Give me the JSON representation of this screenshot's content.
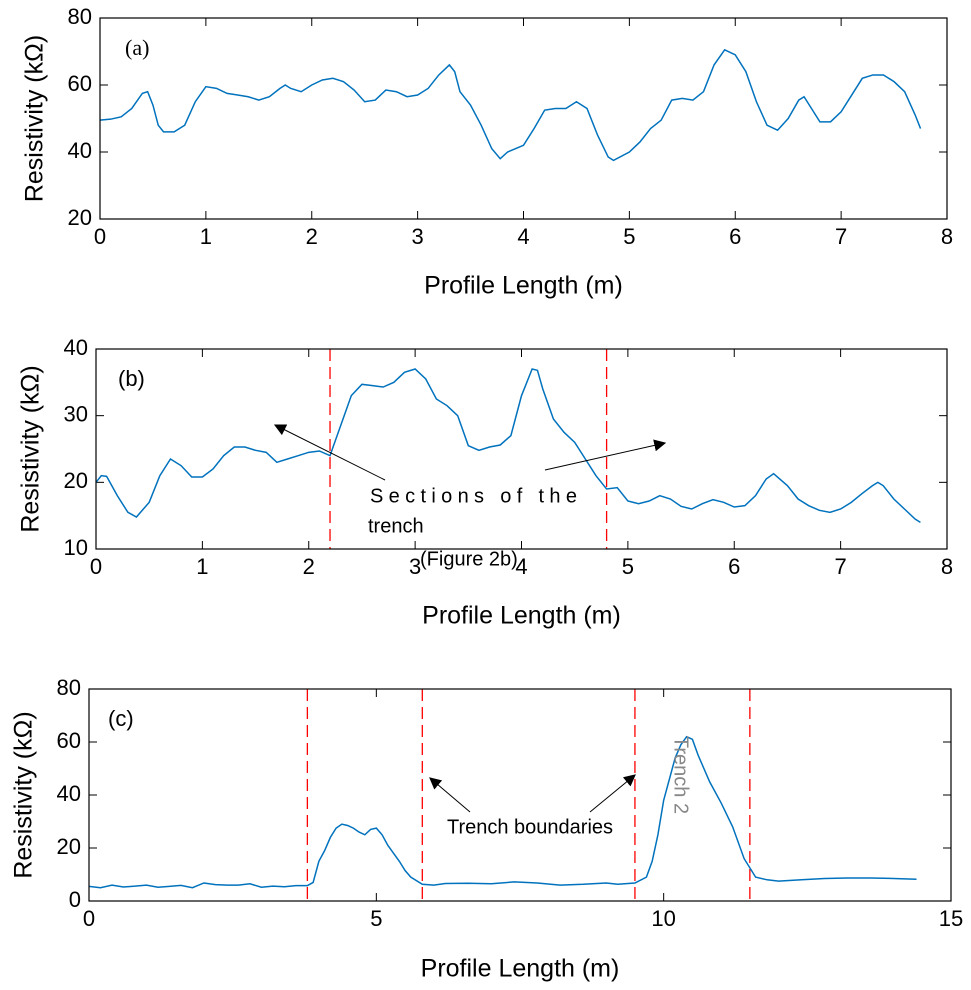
{
  "chart_data": [
    {
      "type": "line",
      "panel_label": "(a)",
      "xlabel": "Profile Length (m)",
      "ylabel": "Resistivity (kΩ)",
      "xlim": [
        0,
        8
      ],
      "ylim": [
        20,
        80
      ],
      "xticks": [
        0,
        1,
        2,
        3,
        4,
        5,
        6,
        7,
        8
      ],
      "yticks": [
        20,
        40,
        60,
        80
      ],
      "x": [
        0,
        0.1,
        0.2,
        0.3,
        0.4,
        0.45,
        0.5,
        0.55,
        0.6,
        0.7,
        0.8,
        0.9,
        1.0,
        1.1,
        1.2,
        1.3,
        1.4,
        1.5,
        1.6,
        1.7,
        1.75,
        1.8,
        1.9,
        2.0,
        2.1,
        2.2,
        2.3,
        2.4,
        2.5,
        2.6,
        2.7,
        2.8,
        2.9,
        3.0,
        3.1,
        3.2,
        3.3,
        3.35,
        3.4,
        3.5,
        3.6,
        3.7,
        3.78,
        3.85,
        4.0,
        4.1,
        4.2,
        4.3,
        4.4,
        4.5,
        4.6,
        4.7,
        4.8,
        4.85,
        5.0,
        5.1,
        5.2,
        5.3,
        5.4,
        5.5,
        5.6,
        5.7,
        5.8,
        5.9,
        6.0,
        6.1,
        6.2,
        6.3,
        6.4,
        6.5,
        6.6,
        6.65,
        6.7,
        6.8,
        6.9,
        7.0,
        7.1,
        7.2,
        7.3,
        7.4,
        7.5,
        7.6,
        7.7,
        7.75
      ],
      "series": [
        {
          "color": "#0072bd",
          "values": [
            49.5,
            49.8,
            50.5,
            53,
            57.5,
            58,
            54,
            48,
            46,
            46,
            48,
            55,
            59.5,
            59,
            57.5,
            57,
            56.5,
            55.5,
            56.5,
            59,
            60,
            59,
            58,
            60,
            61.5,
            62,
            61,
            58.5,
            55,
            55.5,
            58.5,
            58,
            56.5,
            57,
            59,
            63,
            66,
            64,
            58,
            54,
            48,
            41,
            38,
            40,
            42,
            47,
            52.5,
            53,
            53,
            55,
            53,
            45,
            38.5,
            37.5,
            40,
            43,
            47,
            49.5,
            55.5,
            56,
            55.5,
            58,
            66,
            70.5,
            69,
            64,
            55,
            48,
            46.5,
            50,
            55.5,
            56.5,
            54,
            49,
            49,
            52,
            57,
            62,
            63,
            63,
            61,
            58,
            51,
            47
          ]
        }
      ]
    },
    {
      "type": "line",
      "panel_label": "(b)",
      "xlabel": "Profile Length (m)",
      "ylabel": "Resistivity (kΩ)",
      "xlim": [
        0,
        8
      ],
      "ylim": [
        10,
        40
      ],
      "xticks": [
        0,
        1,
        2,
        3,
        4,
        5,
        6,
        7,
        8
      ],
      "yticks": [
        10,
        20,
        30,
        40
      ],
      "vlines": [
        2.2,
        4.8
      ],
      "vline_color": "#ff0000",
      "annotations": [
        "Sections of the",
        "trench",
        "(Figure 2b)"
      ],
      "x": [
        0,
        0.05,
        0.1,
        0.2,
        0.3,
        0.38,
        0.5,
        0.6,
        0.7,
        0.8,
        0.9,
        1.0,
        1.1,
        1.2,
        1.3,
        1.4,
        1.5,
        1.6,
        1.7,
        1.8,
        1.9,
        2.0,
        2.1,
        2.2,
        2.3,
        2.4,
        2.5,
        2.6,
        2.7,
        2.8,
        2.9,
        3.0,
        3.1,
        3.2,
        3.3,
        3.4,
        3.5,
        3.6,
        3.7,
        3.8,
        3.9,
        4.0,
        4.1,
        4.15,
        4.2,
        4.3,
        4.4,
        4.5,
        4.6,
        4.7,
        4.8,
        4.9,
        5.0,
        5.1,
        5.2,
        5.3,
        5.4,
        5.5,
        5.6,
        5.7,
        5.8,
        5.9,
        6.0,
        6.1,
        6.2,
        6.3,
        6.37,
        6.5,
        6.6,
        6.7,
        6.8,
        6.9,
        7.0,
        7.1,
        7.2,
        7.3,
        7.35,
        7.4,
        7.5,
        7.6,
        7.7,
        7.75
      ],
      "series": [
        {
          "color": "#0072bd",
          "values": [
            20,
            21,
            20.9,
            18,
            15.5,
            14.8,
            17,
            21,
            23.5,
            22.5,
            20.8,
            20.8,
            22,
            24,
            25.3,
            25.3,
            24.8,
            24.5,
            23,
            23.5,
            24,
            24.5,
            24.7,
            24,
            28.5,
            33,
            34.7,
            34.5,
            34.3,
            35,
            36.5,
            37,
            35.5,
            32.5,
            31.5,
            30,
            25.5,
            24.8,
            25.3,
            25.6,
            27,
            33,
            37,
            36.8,
            34,
            29.5,
            27.5,
            26,
            23.5,
            21,
            19,
            19.2,
            17.2,
            16.8,
            17.2,
            18,
            17.5,
            16.4,
            16,
            16.8,
            17.4,
            17,
            16.3,
            16.5,
            18,
            20.5,
            21.3,
            19.5,
            17.5,
            16.5,
            15.8,
            15.5,
            16,
            17,
            18.3,
            19.5,
            20,
            19.5,
            17.5,
            16,
            14.5,
            14
          ]
        }
      ]
    },
    {
      "type": "line",
      "panel_label": "(c)",
      "xlabel": "Profile Length (m)",
      "ylabel": "Resistivity (kΩ)",
      "xlim": [
        0,
        15
      ],
      "ylim": [
        0,
        80
      ],
      "xticks": [
        0,
        5,
        10,
        15
      ],
      "yticks": [
        0,
        20,
        40,
        60,
        80
      ],
      "vlines": [
        3.8,
        5.8,
        9.5,
        11.5
      ],
      "vline_color": "#ff0000",
      "annotations": [
        "Trench boundaries",
        "Trench 2"
      ],
      "x": [
        0,
        0.2,
        0.4,
        0.6,
        0.8,
        1.0,
        1.2,
        1.4,
        1.6,
        1.8,
        2.0,
        2.2,
        2.4,
        2.6,
        2.8,
        3.0,
        3.2,
        3.4,
        3.6,
        3.8,
        3.9,
        4.0,
        4.1,
        4.2,
        4.3,
        4.4,
        4.5,
        4.6,
        4.7,
        4.8,
        4.9,
        5.0,
        5.1,
        5.2,
        5.3,
        5.4,
        5.5,
        5.6,
        5.8,
        6.0,
        6.2,
        6.6,
        7.0,
        7.4,
        7.8,
        8.2,
        8.6,
        9.0,
        9.2,
        9.5,
        9.7,
        9.8,
        9.9,
        10.0,
        10.2,
        10.3,
        10.4,
        10.5,
        10.6,
        10.8,
        11.0,
        11.2,
        11.4,
        11.6,
        11.8,
        12.0,
        12.4,
        12.8,
        13.2,
        13.6,
        14.0,
        14.4
      ],
      "series": [
        {
          "color": "#0072bd",
          "values": [
            5.5,
            5,
            6,
            5.3,
            5.6,
            6,
            5.2,
            5.5,
            5.9,
            5,
            6.8,
            6.2,
            6,
            6,
            6.5,
            5.2,
            5.6,
            5.4,
            5.8,
            5.8,
            7,
            15,
            19,
            24,
            27.5,
            29,
            28.5,
            27.5,
            26,
            25,
            27,
            27.5,
            25,
            21,
            18,
            15,
            11.5,
            9,
            6.3,
            6,
            6.6,
            6.7,
            6.5,
            7.2,
            6.8,
            6,
            6.3,
            6.8,
            6.3,
            6.8,
            9,
            15,
            25,
            38,
            54,
            59,
            62,
            61,
            55,
            45,
            37,
            28,
            16,
            9,
            8,
            7.5,
            8,
            8.5,
            8.7,
            8.7,
            8.5,
            8.2
          ]
        }
      ]
    }
  ]
}
